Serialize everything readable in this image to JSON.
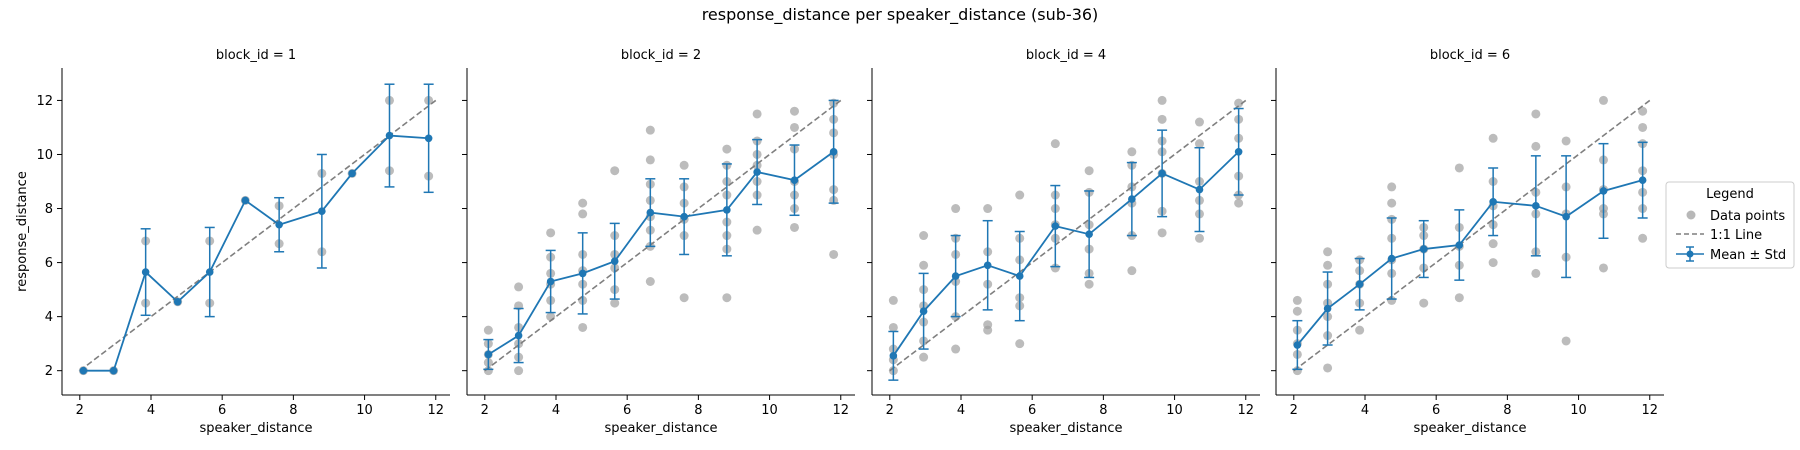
{
  "title": "response_distance per speaker_distance (sub-36)",
  "legend": {
    "title": "Legend",
    "items": [
      {
        "label": "Data points",
        "kind": "points"
      },
      {
        "label": "1:1 Line",
        "kind": "line"
      },
      {
        "label": "Mean ± Std",
        "kind": "errorbar"
      }
    ]
  },
  "colors": {
    "mean": "#1f77b4",
    "points": "#a0a0a0",
    "identity": "#7f7f7f"
  },
  "chart_data": {
    "type": "line",
    "xlabel": "speaker_distance",
    "ylabel": "response_distance",
    "xlim": [
      1.5,
      12.4
    ],
    "ylim": [
      1.1,
      13.2
    ],
    "xticks": [
      2,
      4,
      6,
      8,
      10,
      12
    ],
    "yticks": [
      2,
      4,
      6,
      8,
      10,
      12
    ],
    "grid": false,
    "legend_position": "right",
    "identity_line": [
      [
        2,
        2
      ],
      [
        12,
        12
      ]
    ],
    "panels": [
      {
        "title": "block_id = 1",
        "mean_series": [
          {
            "x": 2.1,
            "y": 2.0,
            "std": 0
          },
          {
            "x": 2.95,
            "y": 2.0,
            "std": 0
          },
          {
            "x": 3.85,
            "y": 5.65,
            "std": 1.6
          },
          {
            "x": 4.75,
            "y": 4.55,
            "std": 0
          },
          {
            "x": 5.65,
            "y": 5.65,
            "std": 1.65
          },
          {
            "x": 6.65,
            "y": 8.3,
            "std": 0
          },
          {
            "x": 7.6,
            "y": 7.4,
            "std": 1.0
          },
          {
            "x": 8.8,
            "y": 7.9,
            "std": 2.1
          },
          {
            "x": 9.65,
            "y": 9.3,
            "std": 0
          },
          {
            "x": 10.7,
            "y": 10.7,
            "std": 1.9
          },
          {
            "x": 11.8,
            "y": 10.6,
            "std": 2.0
          }
        ],
        "points": [
          [
            2.1,
            2.0
          ],
          [
            2.95,
            2.0
          ],
          [
            3.85,
            4.5
          ],
          [
            3.85,
            6.8
          ],
          [
            4.75,
            4.55
          ],
          [
            5.65,
            4.5
          ],
          [
            5.65,
            6.8
          ],
          [
            6.65,
            8.3
          ],
          [
            7.6,
            6.7
          ],
          [
            7.6,
            8.1
          ],
          [
            8.8,
            6.4
          ],
          [
            8.8,
            9.3
          ],
          [
            9.65,
            9.3
          ],
          [
            10.7,
            9.4
          ],
          [
            10.7,
            12.0
          ],
          [
            11.8,
            9.2
          ],
          [
            11.8,
            12.0
          ]
        ]
      },
      {
        "title": "block_id = 2",
        "mean_series": [
          {
            "x": 2.1,
            "y": 2.6,
            "std": 0.55
          },
          {
            "x": 2.95,
            "y": 3.3,
            "std": 1.0
          },
          {
            "x": 3.85,
            "y": 5.3,
            "std": 1.15
          },
          {
            "x": 4.75,
            "y": 5.6,
            "std": 1.5
          },
          {
            "x": 5.65,
            "y": 6.05,
            "std": 1.4
          },
          {
            "x": 6.65,
            "y": 7.85,
            "std": 1.25
          },
          {
            "x": 7.6,
            "y": 7.7,
            "std": 1.4
          },
          {
            "x": 8.8,
            "y": 7.95,
            "std": 1.7
          },
          {
            "x": 9.65,
            "y": 9.35,
            "std": 1.2
          },
          {
            "x": 10.7,
            "y": 9.05,
            "std": 1.3
          },
          {
            "x": 11.8,
            "y": 10.1,
            "std": 1.9
          }
        ],
        "points": [
          [
            2.1,
            2.0
          ],
          [
            2.1,
            2.3
          ],
          [
            2.1,
            2.6
          ],
          [
            2.1,
            3.0
          ],
          [
            2.1,
            3.5
          ],
          [
            2.95,
            2.0
          ],
          [
            2.95,
            2.5
          ],
          [
            2.95,
            3.0
          ],
          [
            2.95,
            3.6
          ],
          [
            2.95,
            4.4
          ],
          [
            2.95,
            5.1
          ],
          [
            3.85,
            4.0
          ],
          [
            3.85,
            4.6
          ],
          [
            3.85,
            5.2
          ],
          [
            3.85,
            5.6
          ],
          [
            3.85,
            6.2
          ],
          [
            3.85,
            7.1
          ],
          [
            4.75,
            3.6
          ],
          [
            4.75,
            4.6
          ],
          [
            4.75,
            5.2
          ],
          [
            4.75,
            5.7
          ],
          [
            4.75,
            6.3
          ],
          [
            4.75,
            7.8
          ],
          [
            4.75,
            8.2
          ],
          [
            5.65,
            4.5
          ],
          [
            5.65,
            5.0
          ],
          [
            5.65,
            5.8
          ],
          [
            5.65,
            6.3
          ],
          [
            5.65,
            7.0
          ],
          [
            5.65,
            9.4
          ],
          [
            6.65,
            5.3
          ],
          [
            6.65,
            6.6
          ],
          [
            6.65,
            7.2
          ],
          [
            6.65,
            7.7
          ],
          [
            6.65,
            8.3
          ],
          [
            6.65,
            8.9
          ],
          [
            6.65,
            9.8
          ],
          [
            6.65,
            10.9
          ],
          [
            7.6,
            4.7
          ],
          [
            7.6,
            7.0
          ],
          [
            7.6,
            7.6
          ],
          [
            7.6,
            8.2
          ],
          [
            7.6,
            8.8
          ],
          [
            7.6,
            9.6
          ],
          [
            8.8,
            4.7
          ],
          [
            8.8,
            6.5
          ],
          [
            8.8,
            7.0
          ],
          [
            8.8,
            7.5
          ],
          [
            8.8,
            8.5
          ],
          [
            8.8,
            9.0
          ],
          [
            8.8,
            9.6
          ],
          [
            8.8,
            10.2
          ],
          [
            9.65,
            7.2
          ],
          [
            9.65,
            8.5
          ],
          [
            9.65,
            9.0
          ],
          [
            9.65,
            9.6
          ],
          [
            9.65,
            10.0
          ],
          [
            9.65,
            10.5
          ],
          [
            9.65,
            11.5
          ],
          [
            10.7,
            7.3
          ],
          [
            10.7,
            8.0
          ],
          [
            10.7,
            8.5
          ],
          [
            10.7,
            9.0
          ],
          [
            10.7,
            10.2
          ],
          [
            10.7,
            11.0
          ],
          [
            10.7,
            11.6
          ],
          [
            11.8,
            6.3
          ],
          [
            11.8,
            8.3
          ],
          [
            11.8,
            8.7
          ],
          [
            11.8,
            10.0
          ],
          [
            11.8,
            10.8
          ],
          [
            11.8,
            11.3
          ],
          [
            11.8,
            11.9
          ]
        ]
      },
      {
        "title": "block_id = 4",
        "mean_series": [
          {
            "x": 2.1,
            "y": 2.55,
            "std": 0.9
          },
          {
            "x": 2.95,
            "y": 4.2,
            "std": 1.4
          },
          {
            "x": 3.85,
            "y": 5.5,
            "std": 1.5
          },
          {
            "x": 4.75,
            "y": 5.9,
            "std": 1.65
          },
          {
            "x": 5.65,
            "y": 5.5,
            "std": 1.65
          },
          {
            "x": 6.65,
            "y": 7.35,
            "std": 1.5
          },
          {
            "x": 7.6,
            "y": 7.05,
            "std": 1.6
          },
          {
            "x": 8.8,
            "y": 8.35,
            "std": 1.35
          },
          {
            "x": 9.65,
            "y": 9.3,
            "std": 1.6
          },
          {
            "x": 10.7,
            "y": 8.7,
            "std": 1.55
          },
          {
            "x": 11.8,
            "y": 10.1,
            "std": 1.6
          }
        ],
        "points": [
          [
            2.1,
            2.0
          ],
          [
            2.1,
            2.4
          ],
          [
            2.1,
            2.8
          ],
          [
            2.1,
            3.6
          ],
          [
            2.1,
            4.6
          ],
          [
            2.95,
            2.5
          ],
          [
            2.95,
            3.1
          ],
          [
            2.95,
            3.8
          ],
          [
            2.95,
            4.4
          ],
          [
            2.95,
            5.0
          ],
          [
            2.95,
            5.9
          ],
          [
            2.95,
            7.0
          ],
          [
            3.85,
            2.8
          ],
          [
            3.85,
            4.0
          ],
          [
            3.85,
            5.3
          ],
          [
            3.85,
            6.3
          ],
          [
            3.85,
            6.9
          ],
          [
            3.85,
            8.0
          ],
          [
            4.75,
            3.5
          ],
          [
            4.75,
            3.7
          ],
          [
            4.75,
            5.2
          ],
          [
            4.75,
            6.4
          ],
          [
            4.75,
            8.0
          ],
          [
            5.65,
            3.0
          ],
          [
            5.65,
            4.4
          ],
          [
            5.65,
            4.7
          ],
          [
            5.65,
            6.1
          ],
          [
            5.65,
            6.9
          ],
          [
            5.65,
            8.5
          ],
          [
            6.65,
            5.8
          ],
          [
            6.65,
            6.9
          ],
          [
            6.65,
            7.4
          ],
          [
            6.65,
            8.0
          ],
          [
            6.65,
            8.5
          ],
          [
            6.65,
            10.4
          ],
          [
            7.6,
            5.2
          ],
          [
            7.6,
            5.6
          ],
          [
            7.6,
            6.5
          ],
          [
            7.6,
            7.4
          ],
          [
            7.6,
            8.6
          ],
          [
            7.6,
            9.4
          ],
          [
            8.8,
            5.7
          ],
          [
            8.8,
            7.0
          ],
          [
            8.8,
            8.2
          ],
          [
            8.8,
            8.8
          ],
          [
            8.8,
            9.6
          ],
          [
            8.8,
            10.1
          ],
          [
            9.65,
            7.1
          ],
          [
            9.65,
            7.9
          ],
          [
            9.65,
            9.3
          ],
          [
            9.65,
            10.1
          ],
          [
            9.65,
            10.5
          ],
          [
            9.65,
            11.3
          ],
          [
            9.65,
            12.0
          ],
          [
            10.7,
            6.9
          ],
          [
            10.7,
            7.8
          ],
          [
            10.7,
            8.3
          ],
          [
            10.7,
            9.0
          ],
          [
            10.7,
            10.4
          ],
          [
            10.7,
            11.2
          ],
          [
            11.8,
            8.2
          ],
          [
            11.8,
            8.5
          ],
          [
            11.8,
            9.2
          ],
          [
            11.8,
            10.6
          ],
          [
            11.8,
            11.3
          ],
          [
            11.8,
            11.9
          ]
        ]
      },
      {
        "title": "block_id = 6",
        "mean_series": [
          {
            "x": 2.1,
            "y": 2.95,
            "std": 0.9
          },
          {
            "x": 2.95,
            "y": 4.3,
            "std": 1.35
          },
          {
            "x": 3.85,
            "y": 5.2,
            "std": 0.95
          },
          {
            "x": 4.75,
            "y": 6.15,
            "std": 1.5
          },
          {
            "x": 5.65,
            "y": 6.5,
            "std": 1.05
          },
          {
            "x": 6.65,
            "y": 6.65,
            "std": 1.3
          },
          {
            "x": 7.6,
            "y": 8.25,
            "std": 1.25
          },
          {
            "x": 8.8,
            "y": 8.1,
            "std": 1.85
          },
          {
            "x": 9.65,
            "y": 7.7,
            "std": 2.25
          },
          {
            "x": 10.7,
            "y": 8.65,
            "std": 1.75
          },
          {
            "x": 11.8,
            "y": 9.05,
            "std": 1.4
          }
        ],
        "points": [
          [
            2.1,
            2.0
          ],
          [
            2.1,
            2.6
          ],
          [
            2.1,
            3.0
          ],
          [
            2.1,
            3.5
          ],
          [
            2.1,
            4.2
          ],
          [
            2.1,
            4.6
          ],
          [
            2.95,
            2.1
          ],
          [
            2.95,
            3.3
          ],
          [
            2.95,
            4.0
          ],
          [
            2.95,
            4.5
          ],
          [
            2.95,
            5.2
          ],
          [
            2.95,
            5.9
          ],
          [
            2.95,
            6.4
          ],
          [
            3.85,
            3.5
          ],
          [
            3.85,
            4.5
          ],
          [
            3.85,
            5.2
          ],
          [
            3.85,
            5.7
          ],
          [
            3.85,
            6.1
          ],
          [
            4.75,
            4.6
          ],
          [
            4.75,
            5.6
          ],
          [
            4.75,
            6.1
          ],
          [
            4.75,
            6.9
          ],
          [
            4.75,
            7.6
          ],
          [
            4.75,
            8.2
          ],
          [
            4.75,
            8.8
          ],
          [
            5.65,
            4.5
          ],
          [
            5.65,
            5.8
          ],
          [
            5.65,
            6.5
          ],
          [
            5.65,
            7.0
          ],
          [
            5.65,
            7.3
          ],
          [
            6.65,
            4.7
          ],
          [
            6.65,
            5.9
          ],
          [
            6.65,
            6.6
          ],
          [
            6.65,
            7.3
          ],
          [
            6.65,
            9.5
          ],
          [
            7.6,
            6.0
          ],
          [
            7.6,
            6.7
          ],
          [
            7.6,
            7.4
          ],
          [
            7.6,
            8.1
          ],
          [
            7.6,
            9.0
          ],
          [
            7.6,
            10.6
          ],
          [
            8.8,
            5.6
          ],
          [
            8.8,
            6.4
          ],
          [
            8.8,
            7.8
          ],
          [
            8.8,
            8.6
          ],
          [
            8.8,
            10.3
          ],
          [
            8.8,
            11.5
          ],
          [
            9.65,
            3.1
          ],
          [
            9.65,
            6.2
          ],
          [
            9.65,
            7.8
          ],
          [
            9.65,
            8.8
          ],
          [
            9.65,
            10.5
          ],
          [
            10.7,
            5.8
          ],
          [
            10.7,
            7.8
          ],
          [
            10.7,
            8.0
          ],
          [
            10.7,
            8.7
          ],
          [
            10.7,
            9.8
          ],
          [
            10.7,
            12.0
          ],
          [
            11.8,
            6.9
          ],
          [
            11.8,
            8.0
          ],
          [
            11.8,
            8.6
          ],
          [
            11.8,
            9.4
          ],
          [
            11.8,
            10.4
          ],
          [
            11.8,
            11.0
          ],
          [
            11.8,
            11.6
          ]
        ]
      }
    ]
  }
}
